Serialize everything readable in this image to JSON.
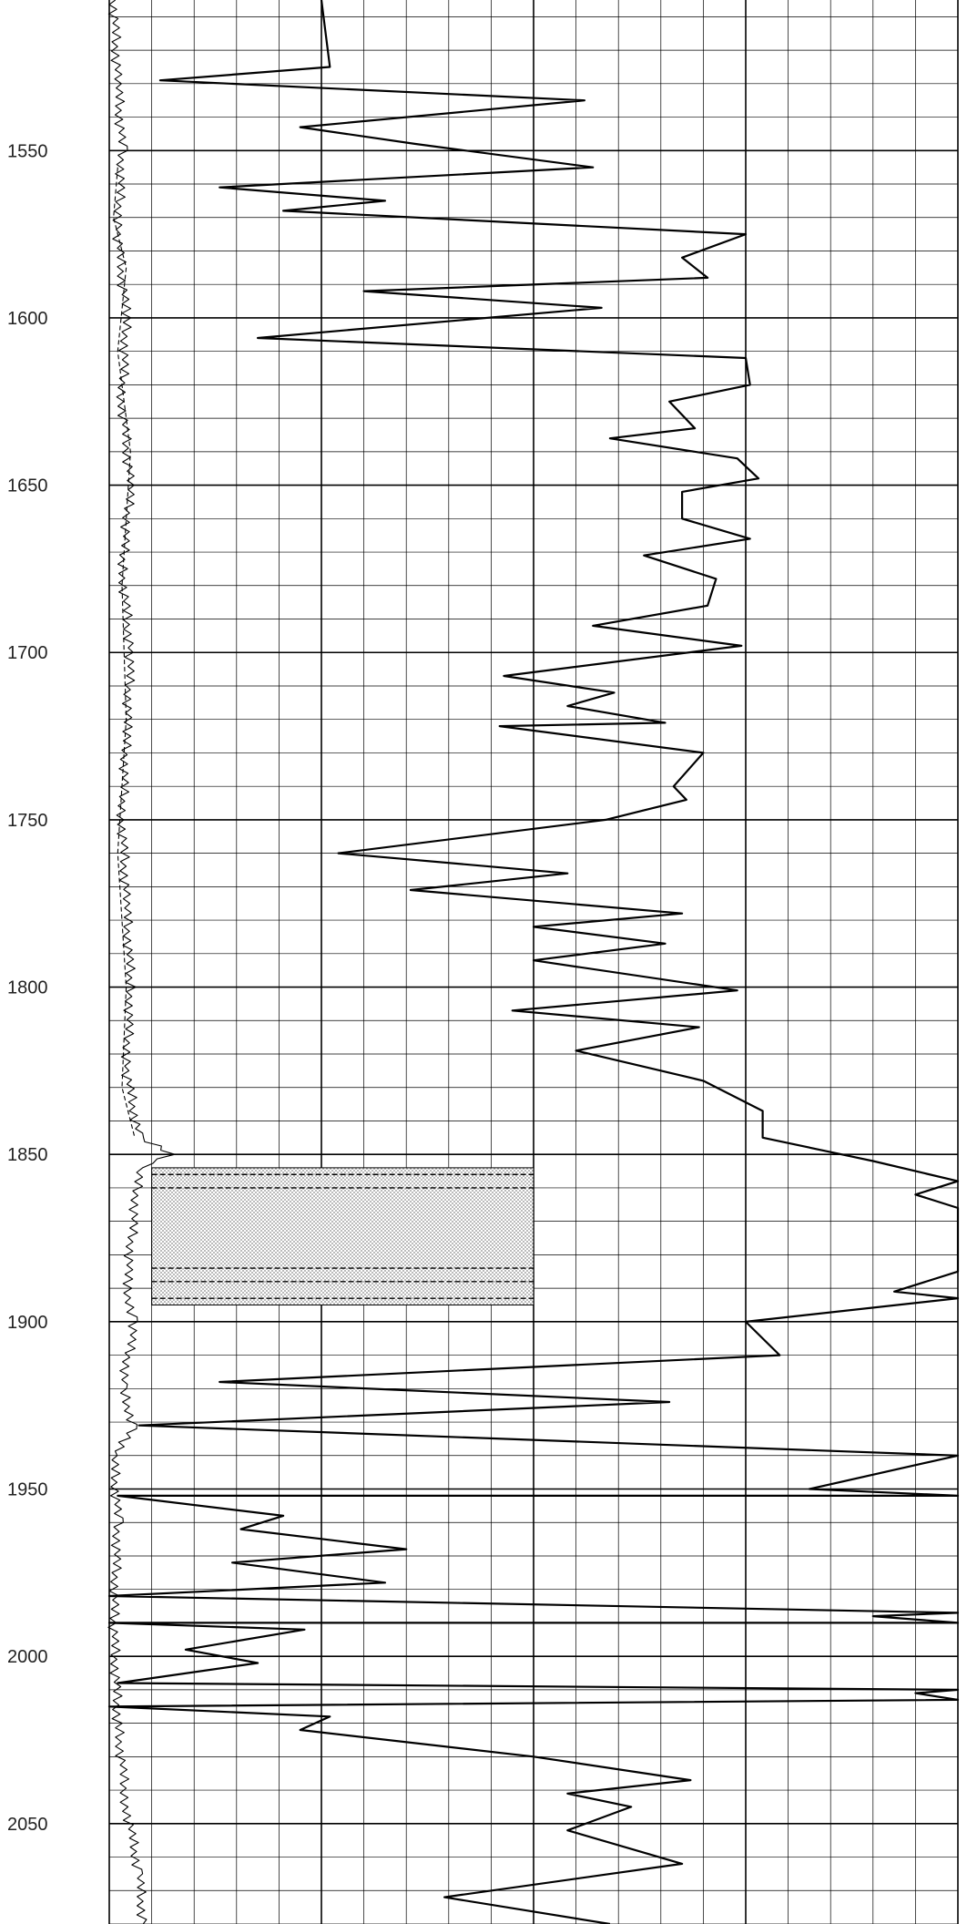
{
  "chart_data": {
    "type": "line",
    "title": "",
    "xlabel": "",
    "ylabel": "",
    "y_axis": {
      "direction": "depth-increasing-downward",
      "range": [
        1505,
        2080
      ],
      "major_step": 50,
      "minor_step": 10,
      "tick_labels": [
        "1550",
        "1600",
        "1650",
        "1700",
        "1750",
        "1800",
        "1850",
        "1900",
        "1950",
        "2000",
        "2050"
      ]
    },
    "x_axis": {
      "range": [
        0,
        400
      ],
      "major_lines": [
        100,
        200,
        300
      ],
      "minor_step": 20,
      "tick_labels": []
    },
    "grid": true,
    "legend": "none",
    "colors": {
      "curve": "#000000",
      "grid": "#000000",
      "shading": "#c8c8c8"
    },
    "series": [
      {
        "style": "solid",
        "points": [
          [
            100,
            1505
          ],
          [
            104,
            1525
          ],
          [
            24,
            1529
          ],
          [
            224,
            1535
          ],
          [
            90,
            1543
          ],
          [
            144,
            1548
          ],
          [
            228,
            1555
          ],
          [
            52,
            1561
          ],
          [
            130,
            1565
          ],
          [
            82,
            1568
          ],
          [
            300,
            1575
          ],
          [
            270,
            1582
          ],
          [
            282,
            1588
          ],
          [
            120,
            1592
          ],
          [
            232,
            1597
          ],
          [
            70,
            1606
          ],
          [
            300,
            1612
          ],
          [
            302,
            1620
          ],
          [
            264,
            1625
          ],
          [
            276,
            1633
          ],
          [
            236,
            1636
          ],
          [
            296,
            1642
          ],
          [
            306,
            1648
          ],
          [
            270,
            1652
          ],
          [
            270,
            1660
          ],
          [
            302,
            1666
          ],
          [
            252,
            1671
          ],
          [
            286,
            1678
          ],
          [
            282,
            1686
          ],
          [
            228,
            1692
          ],
          [
            298,
            1698
          ],
          [
            186,
            1707
          ],
          [
            238,
            1712
          ],
          [
            216,
            1716
          ],
          [
            262,
            1721
          ],
          [
            184,
            1722
          ],
          [
            280,
            1730
          ],
          [
            266,
            1740
          ],
          [
            272,
            1744
          ],
          [
            234,
            1750
          ],
          [
            108,
            1760
          ],
          [
            216,
            1766
          ],
          [
            142,
            1771
          ],
          [
            270,
            1778
          ],
          [
            200,
            1782
          ],
          [
            262,
            1787
          ],
          [
            200,
            1792
          ],
          [
            296,
            1801
          ],
          [
            190,
            1807
          ],
          [
            278,
            1812
          ],
          [
            220,
            1819
          ],
          [
            280,
            1828
          ],
          [
            308,
            1837
          ],
          [
            308,
            1845
          ],
          [
            360,
            1852
          ],
          [
            400,
            1858
          ],
          [
            380,
            1862
          ],
          [
            400,
            1866
          ],
          [
            400,
            1880
          ],
          [
            400,
            1885
          ],
          [
            370,
            1891
          ],
          [
            400,
            1893
          ],
          [
            300,
            1900
          ],
          [
            316,
            1910
          ],
          [
            52,
            1918
          ],
          [
            264,
            1924
          ],
          [
            14,
            1931
          ],
          [
            400,
            1940
          ],
          [
            330,
            1950
          ],
          [
            400,
            1952
          ],
          [
            4,
            1952
          ],
          [
            82,
            1958
          ],
          [
            62,
            1962
          ],
          [
            140,
            1968
          ],
          [
            58,
            1972
          ],
          [
            130,
            1978
          ],
          [
            0,
            1982
          ],
          [
            400,
            1987
          ],
          [
            360,
            1988
          ],
          [
            400,
            1990
          ],
          [
            0,
            1990
          ],
          [
            92,
            1992
          ],
          [
            36,
            1998
          ],
          [
            70,
            2002
          ],
          [
            4,
            2008
          ],
          [
            400,
            2010
          ],
          [
            380,
            2011
          ],
          [
            400,
            2013
          ],
          [
            0,
            2015
          ],
          [
            104,
            2018
          ],
          [
            90,
            2022
          ],
          [
            200,
            2030
          ],
          [
            274,
            2037
          ],
          [
            216,
            2041
          ],
          [
            246,
            2045
          ],
          [
            216,
            2052
          ],
          [
            270,
            2062
          ],
          [
            158,
            2072
          ],
          [
            236,
            2080
          ]
        ]
      },
      {
        "style": "jagged-thin",
        "points": [
          [
            2,
            1505
          ],
          [
            4,
            1530
          ],
          [
            6,
            1550
          ],
          [
            4,
            1575
          ],
          [
            8,
            1600
          ],
          [
            6,
            1625
          ],
          [
            10,
            1650
          ],
          [
            6,
            1675
          ],
          [
            10,
            1700
          ],
          [
            8,
            1725
          ],
          [
            6,
            1750
          ],
          [
            8,
            1775
          ],
          [
            10,
            1800
          ],
          [
            8,
            1825
          ],
          [
            14,
            1845
          ],
          [
            30,
            1850
          ],
          [
            14,
            1854
          ],
          [
            8,
            1890
          ],
          [
            12,
            1900
          ],
          [
            6,
            1920
          ],
          [
            12,
            1932
          ],
          [
            2,
            1940
          ],
          [
            4,
            1960
          ],
          [
            2,
            1990
          ],
          [
            4,
            2020
          ],
          [
            8,
            2045
          ],
          [
            14,
            2065
          ],
          [
            16,
            2080
          ]
        ]
      },
      {
        "style": "dashed",
        "points": [
          [
            4,
            1555
          ],
          [
            2,
            1570
          ],
          [
            8,
            1585
          ],
          [
            4,
            1610
          ],
          [
            10,
            1640
          ],
          [
            6,
            1680
          ],
          [
            8,
            1720
          ],
          [
            4,
            1760
          ],
          [
            8,
            1800
          ],
          [
            6,
            1830
          ],
          [
            12,
            1845
          ]
        ]
      }
    ],
    "shaded_interval": {
      "depth_range": [
        1854,
        1895
      ],
      "x_range": [
        20,
        200
      ],
      "dashed_band_depths": [
        1856,
        1860,
        1884,
        1888,
        1893
      ]
    }
  }
}
